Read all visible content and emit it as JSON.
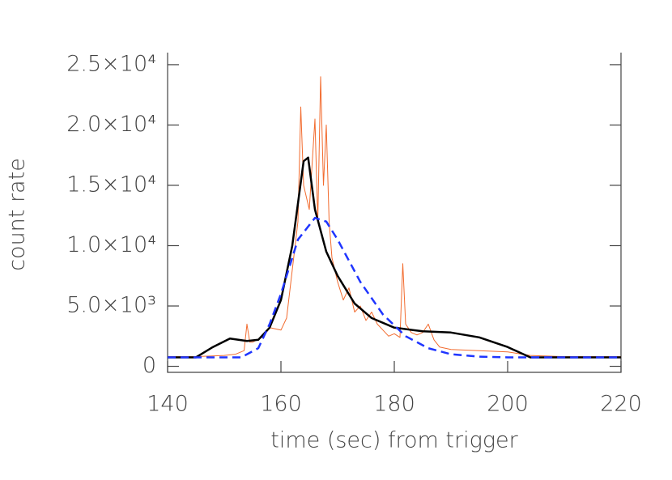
{
  "chart_data": {
    "type": "line",
    "x_label": "time (sec) from trigger",
    "y_label": "count rate",
    "xlim": [
      140,
      220
    ],
    "xticks": [
      140,
      160,
      180,
      200,
      220
    ],
    "ylim": [
      -500,
      26000
    ],
    "yticks": [
      0,
      {
        "value": 5000,
        "label": "5.0×10³"
      },
      {
        "value": 10000,
        "label": "1.0×10⁴"
      },
      {
        "value": 15000,
        "label": "1.5×10⁴"
      },
      {
        "value": 20000,
        "label": "2.0×10⁴"
      },
      {
        "value": 25000,
        "label": "2.5×10⁴"
      }
    ],
    "series": [
      {
        "color": "#f26b2e",
        "line_style": "solid",
        "width": 1,
        "x": [
          140,
          145,
          150,
          152,
          153.5,
          154,
          154.5,
          155,
          157,
          158,
          160,
          161,
          162,
          163,
          163.5,
          164,
          165,
          166,
          166.5,
          167,
          167.5,
          168,
          168.5,
          169,
          170,
          171,
          172,
          173,
          174,
          175,
          176,
          177,
          178,
          179,
          180,
          181,
          181.5,
          182,
          183,
          184,
          185,
          186,
          187,
          188,
          190,
          195,
          200,
          204,
          210,
          220
        ],
        "values": [
          800,
          800,
          900,
          1000,
          1300,
          3500,
          2000,
          2000,
          2500,
          3200,
          3000,
          4000,
          8000,
          12000,
          21500,
          15000,
          13000,
          20500,
          12000,
          24000,
          15000,
          20000,
          12000,
          9000,
          7000,
          5500,
          6500,
          4500,
          5000,
          3800,
          4500,
          3500,
          3000,
          2500,
          2700,
          2400,
          8500,
          3500,
          2800,
          2600,
          2800,
          3500,
          2200,
          1600,
          1400,
          1300,
          1200,
          900,
          800,
          800
        ]
      },
      {
        "color": "#000000",
        "line_style": "solid",
        "width": 2.5,
        "x": [
          140,
          145,
          148,
          151,
          154,
          156,
          158,
          160,
          162,
          164,
          164.8,
          166,
          168,
          170,
          173,
          176,
          180,
          185,
          190,
          195,
          200,
          204,
          210,
          220
        ],
        "values": [
          740,
          740,
          1600,
          2300,
          2100,
          2200,
          3200,
          5500,
          10000,
          17000,
          17300,
          13000,
          9500,
          7500,
          5200,
          4000,
          3200,
          2900,
          2800,
          2400,
          1600,
          740,
          740,
          740
        ]
      },
      {
        "color": "#1f35ff",
        "line_style": "dashed",
        "width": 2.5,
        "x": [
          140,
          153,
          156,
          158,
          160,
          163,
          166,
          168,
          170,
          174,
          178,
          182,
          186,
          190,
          195,
          200,
          220
        ],
        "values": [
          740,
          740,
          1500,
          3500,
          6000,
          10500,
          12300,
          12000,
          10500,
          7000,
          4300,
          2500,
          1500,
          1000,
          800,
          740,
          740
        ]
      }
    ]
  }
}
